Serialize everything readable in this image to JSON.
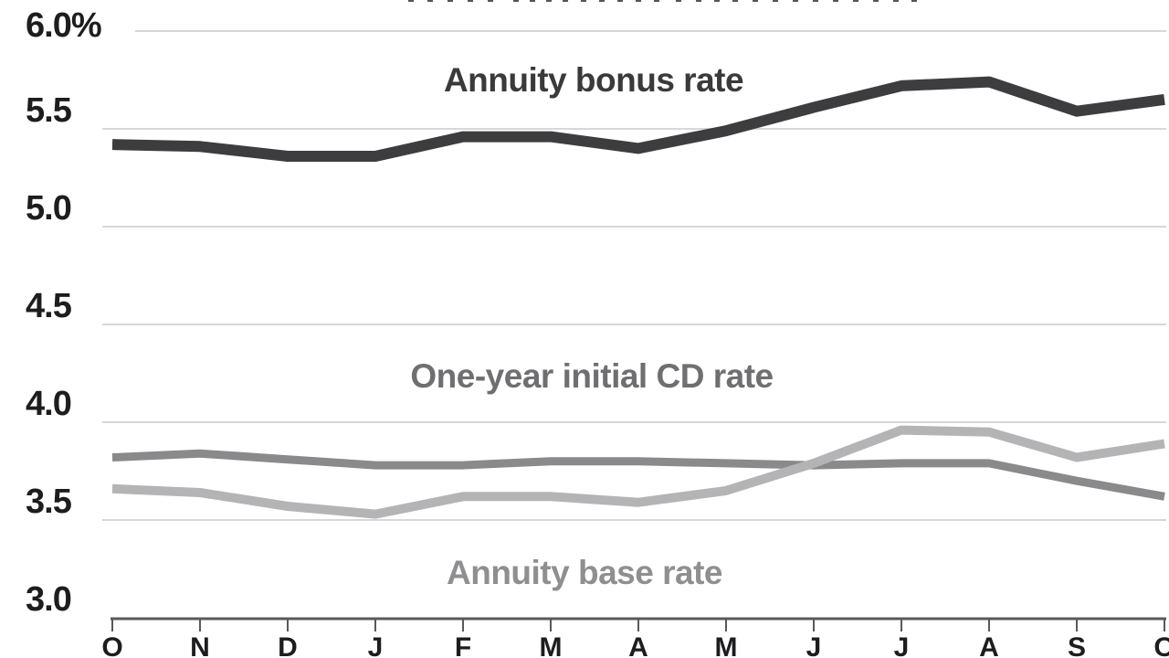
{
  "chart_data": {
    "type": "line",
    "title": "",
    "x_unit": "month",
    "months": [
      "O",
      "N",
      "D",
      "J",
      "F",
      "M",
      "A",
      "M",
      "J",
      "J",
      "A",
      "S",
      "O"
    ],
    "y_axis": {
      "min": 3.0,
      "max": 6.0,
      "tick_step": 0.5,
      "ticks": [
        {
          "value": 6.0,
          "label": "6.0%"
        },
        {
          "value": 5.5,
          "label": "5.5"
        },
        {
          "value": 5.0,
          "label": "5.0"
        },
        {
          "value": 4.5,
          "label": "4.5"
        },
        {
          "value": 4.0,
          "label": "4.0"
        },
        {
          "value": 3.5,
          "label": "3.5"
        },
        {
          "value": 3.0,
          "label": "3.0"
        }
      ]
    },
    "grid": true,
    "legend_position": "inline-annotations",
    "series": [
      {
        "name": "Annuity bonus rate",
        "color": "#3d3d3f",
        "label_color": "#3a3a3c",
        "values": [
          5.42,
          5.41,
          5.36,
          5.36,
          5.46,
          5.46,
          5.4,
          5.49,
          5.61,
          5.72,
          5.74,
          5.59,
          5.65
        ]
      },
      {
        "name": "One-year initial CD rate",
        "color": "#8a8a8c",
        "label_color": "#6f6f72",
        "values": [
          3.82,
          3.84,
          3.81,
          3.78,
          3.78,
          3.8,
          3.8,
          3.79,
          3.78,
          3.79,
          3.79,
          3.7,
          3.62
        ]
      },
      {
        "name": "Annuity base rate",
        "color": "#b4b4b6",
        "label_color": "#8f8f92",
        "values": [
          3.66,
          3.64,
          3.57,
          3.53,
          3.62,
          3.62,
          3.59,
          3.65,
          3.79,
          3.96,
          3.95,
          3.82,
          3.89
        ]
      }
    ],
    "axis_color": "#59595b",
    "gridline_color": "#d7d7d7",
    "text_color": "#1d1d1f"
  }
}
